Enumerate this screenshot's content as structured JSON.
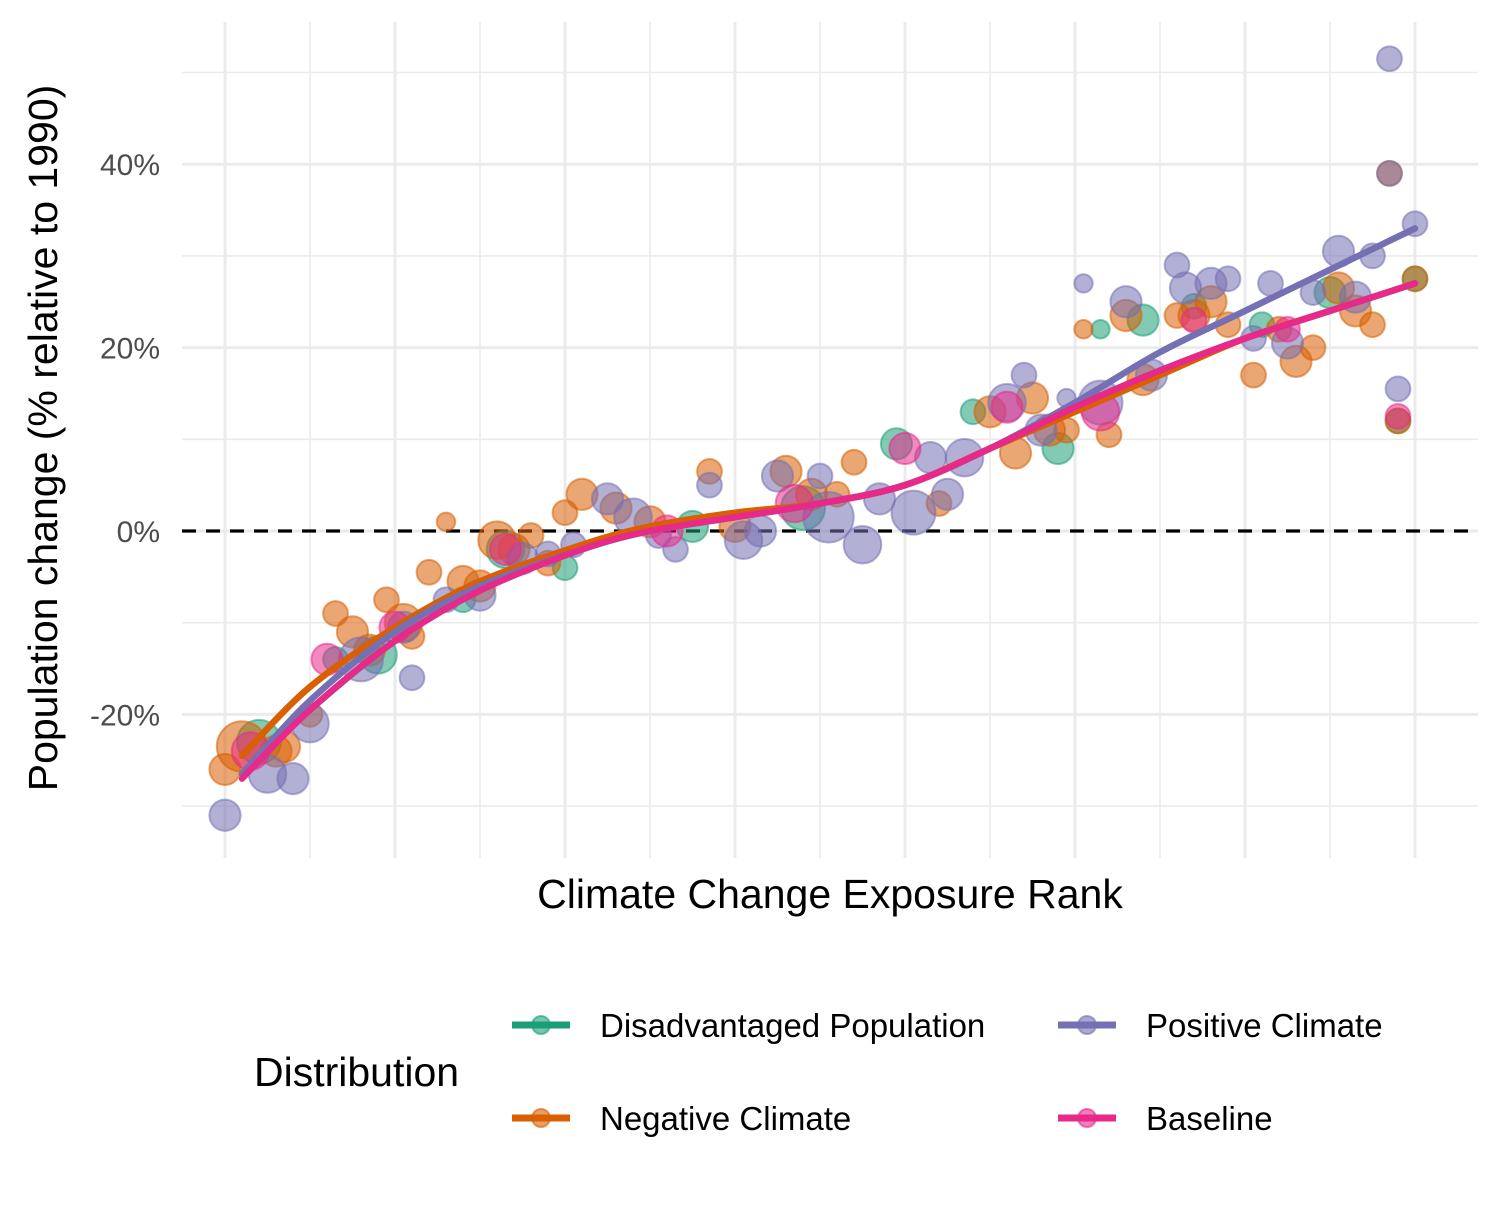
{
  "chart_data": {
    "type": "scatter",
    "title": "",
    "xlabel": "Climate Change Exposure Rank",
    "ylabel": "Population change (% relative to 1990)",
    "xlim": [
      -2,
      150
    ],
    "ylim": [
      -35,
      53
    ],
    "y_ticks": [
      -20,
      0,
      20,
      40
    ],
    "y_tick_labels": [
      "-20%",
      "0%",
      "20%",
      "40%"
    ],
    "grid": true,
    "reference_line": {
      "y": 0,
      "style": "dashed",
      "color": "#000000"
    },
    "legend": {
      "title": "Distribution",
      "position": "bottom",
      "entries": [
        {
          "label": "Disadvantaged Population",
          "color": "#1B9E77"
        },
        {
          "label": "Positive Climate",
          "color": "#7570B3"
        },
        {
          "label": "Negative Climate",
          "color": "#D95F02"
        },
        {
          "label": "Baseline",
          "color": "#E7298A"
        }
      ]
    },
    "series": [
      {
        "name": "Disadvantaged Population",
        "color": "#1B9E77",
        "trend": [
          [
            2,
            -26.5
          ],
          [
            10,
            -19.5
          ],
          [
            20,
            -12
          ],
          [
            30,
            -6.5
          ],
          [
            42,
            -2
          ],
          [
            50,
            0
          ],
          [
            60,
            1.5
          ],
          [
            70,
            3
          ],
          [
            80,
            5
          ],
          [
            90,
            9
          ],
          [
            100,
            13.5
          ],
          [
            110,
            17.5
          ],
          [
            120,
            21
          ],
          [
            130,
            24
          ],
          [
            140,
            27
          ]
        ],
        "points": [
          {
            "x": 4,
            "y": -23,
            "s": 5
          },
          {
            "x": 13,
            "y": -14,
            "s": 2
          },
          {
            "x": 18,
            "y": -13.5,
            "s": 4
          },
          {
            "x": 28,
            "y": -7.5,
            "s": 2
          },
          {
            "x": 33,
            "y": -2,
            "s": 4
          },
          {
            "x": 40,
            "y": -4,
            "s": 2
          },
          {
            "x": 55,
            "y": 0.5,
            "s": 3
          },
          {
            "x": 68,
            "y": 2.5,
            "s": 5
          },
          {
            "x": 79,
            "y": 9.5,
            "s": 3
          },
          {
            "x": 88,
            "y": 13,
            "s": 2
          },
          {
            "x": 98,
            "y": 9,
            "s": 3
          },
          {
            "x": 103,
            "y": 22,
            "s": 1
          },
          {
            "x": 108,
            "y": 23,
            "s": 3
          },
          {
            "x": 114,
            "y": 24.5,
            "s": 2
          },
          {
            "x": 122,
            "y": 22.5,
            "s": 2
          },
          {
            "x": 130,
            "y": 26,
            "s": 3
          },
          {
            "x": 138,
            "y": 12,
            "s": 2
          },
          {
            "x": 140,
            "y": 27.5,
            "s": 2
          }
        ]
      },
      {
        "name": "Positive Climate",
        "color": "#7570B3",
        "trend": [
          [
            2,
            -26.5
          ],
          [
            10,
            -18.5
          ],
          [
            20,
            -11
          ],
          [
            30,
            -6
          ],
          [
            42,
            -2
          ],
          [
            50,
            0
          ],
          [
            60,
            1.5
          ],
          [
            70,
            3
          ],
          [
            80,
            5
          ],
          [
            90,
            9
          ],
          [
            100,
            14
          ],
          [
            110,
            19.5
          ],
          [
            120,
            24
          ],
          [
            130,
            28.5
          ],
          [
            140,
            33
          ]
        ],
        "points": [
          {
            "x": 0,
            "y": -31,
            "s": 3
          },
          {
            "x": 5,
            "y": -26.5,
            "s": 4
          },
          {
            "x": 8,
            "y": -27,
            "s": 3
          },
          {
            "x": 10,
            "y": -21,
            "s": 4
          },
          {
            "x": 16,
            "y": -14,
            "s": 5
          },
          {
            "x": 21,
            "y": -10.5,
            "s": 3
          },
          {
            "x": 22,
            "y": -16,
            "s": 2
          },
          {
            "x": 26,
            "y": -7.5,
            "s": 2
          },
          {
            "x": 30,
            "y": -7,
            "s": 3
          },
          {
            "x": 35,
            "y": -3,
            "s": 3
          },
          {
            "x": 38,
            "y": -2.5,
            "s": 2
          },
          {
            "x": 41,
            "y": -1.5,
            "s": 2
          },
          {
            "x": 45,
            "y": 3.5,
            "s": 3
          },
          {
            "x": 48,
            "y": 1.5,
            "s": 4
          },
          {
            "x": 51,
            "y": -0.5,
            "s": 2
          },
          {
            "x": 53,
            "y": -2,
            "s": 2
          },
          {
            "x": 57,
            "y": 5,
            "s": 2
          },
          {
            "x": 61,
            "y": -1,
            "s": 4
          },
          {
            "x": 63,
            "y": 0,
            "s": 3
          },
          {
            "x": 65,
            "y": 6,
            "s": 3
          },
          {
            "x": 70,
            "y": 6,
            "s": 2
          },
          {
            "x": 71,
            "y": 1.5,
            "s": 6
          },
          {
            "x": 75,
            "y": -1.5,
            "s": 4
          },
          {
            "x": 77,
            "y": 3.5,
            "s": 3
          },
          {
            "x": 81,
            "y": 2,
            "s": 5
          },
          {
            "x": 83,
            "y": 8,
            "s": 3
          },
          {
            "x": 85,
            "y": 4,
            "s": 3
          },
          {
            "x": 87,
            "y": 8,
            "s": 4
          },
          {
            "x": 92,
            "y": 14,
            "s": 4
          },
          {
            "x": 94,
            "y": 17,
            "s": 2
          },
          {
            "x": 96,
            "y": 11,
            "s": 3
          },
          {
            "x": 99,
            "y": 14.5,
            "s": 1
          },
          {
            "x": 101,
            "y": 27,
            "s": 1
          },
          {
            "x": 103,
            "y": 14,
            "s": 5
          },
          {
            "x": 106,
            "y": 25,
            "s": 3
          },
          {
            "x": 109,
            "y": 17,
            "s": 3
          },
          {
            "x": 112,
            "y": 29,
            "s": 2
          },
          {
            "x": 113,
            "y": 26.5,
            "s": 3
          },
          {
            "x": 116,
            "y": 27,
            "s": 3
          },
          {
            "x": 118,
            "y": 27.5,
            "s": 2
          },
          {
            "x": 121,
            "y": 21,
            "s": 2
          },
          {
            "x": 123,
            "y": 27,
            "s": 2
          },
          {
            "x": 125,
            "y": 20.5,
            "s": 3
          },
          {
            "x": 128,
            "y": 26,
            "s": 2
          },
          {
            "x": 131,
            "y": 30.5,
            "s": 3
          },
          {
            "x": 133,
            "y": 25.5,
            "s": 3
          },
          {
            "x": 135,
            "y": 30,
            "s": 2
          },
          {
            "x": 137,
            "y": 51.5,
            "s": 2
          },
          {
            "x": 137,
            "y": 39,
            "s": 2
          },
          {
            "x": 138,
            "y": 15.5,
            "s": 2
          },
          {
            "x": 140,
            "y": 33.5,
            "s": 2
          }
        ]
      },
      {
        "name": "Negative Climate",
        "color": "#D95F02",
        "trend": [
          [
            2,
            -24.5
          ],
          [
            10,
            -17
          ],
          [
            20,
            -10.5
          ],
          [
            30,
            -5.5
          ],
          [
            42,
            -1.5
          ],
          [
            50,
            0.5
          ],
          [
            60,
            2
          ],
          [
            70,
            3
          ],
          [
            80,
            5
          ],
          [
            90,
            9
          ],
          [
            100,
            13
          ],
          [
            110,
            17
          ],
          [
            120,
            21
          ],
          [
            130,
            24
          ],
          [
            140,
            27
          ]
        ],
        "points": [
          {
            "x": 0,
            "y": -26,
            "s": 3
          },
          {
            "x": 2,
            "y": -23.5,
            "s": 6
          },
          {
            "x": 6,
            "y": -24,
            "s": 3
          },
          {
            "x": 7,
            "y": -23.5,
            "s": 3
          },
          {
            "x": 10,
            "y": -20,
            "s": 2
          },
          {
            "x": 13,
            "y": -9,
            "s": 2
          },
          {
            "x": 15,
            "y": -11,
            "s": 3
          },
          {
            "x": 17,
            "y": -13,
            "s": 3
          },
          {
            "x": 19,
            "y": -7.5,
            "s": 2
          },
          {
            "x": 21,
            "y": -10,
            "s": 4
          },
          {
            "x": 22,
            "y": -11.5,
            "s": 2
          },
          {
            "x": 24,
            "y": -4.5,
            "s": 2
          },
          {
            "x": 26,
            "y": 1,
            "s": 1
          },
          {
            "x": 28,
            "y": -5.5,
            "s": 3
          },
          {
            "x": 30,
            "y": -6,
            "s": 3
          },
          {
            "x": 32,
            "y": -1,
            "s": 4
          },
          {
            "x": 34,
            "y": -2,
            "s": 3
          },
          {
            "x": 36,
            "y": -0.5,
            "s": 2
          },
          {
            "x": 38,
            "y": -3.5,
            "s": 2
          },
          {
            "x": 40,
            "y": 2,
            "s": 2
          },
          {
            "x": 42,
            "y": 4,
            "s": 3
          },
          {
            "x": 46,
            "y": 2.5,
            "s": 3
          },
          {
            "x": 50,
            "y": 1,
            "s": 3
          },
          {
            "x": 57,
            "y": 6.5,
            "s": 2
          },
          {
            "x": 60,
            "y": 0.5,
            "s": 3
          },
          {
            "x": 66,
            "y": 6.5,
            "s": 3
          },
          {
            "x": 69,
            "y": 4,
            "s": 3
          },
          {
            "x": 72,
            "y": 4,
            "s": 2
          },
          {
            "x": 74,
            "y": 7.5,
            "s": 2
          },
          {
            "x": 84,
            "y": 3,
            "s": 2
          },
          {
            "x": 90,
            "y": 13,
            "s": 3
          },
          {
            "x": 93,
            "y": 8.5,
            "s": 3
          },
          {
            "x": 95,
            "y": 14.5,
            "s": 3
          },
          {
            "x": 97,
            "y": 11,
            "s": 3
          },
          {
            "x": 99,
            "y": 11,
            "s": 2
          },
          {
            "x": 101,
            "y": 22,
            "s": 1
          },
          {
            "x": 104,
            "y": 10.5,
            "s": 2
          },
          {
            "x": 106,
            "y": 23.5,
            "s": 3
          },
          {
            "x": 108,
            "y": 16.5,
            "s": 3
          },
          {
            "x": 112,
            "y": 23.5,
            "s": 2
          },
          {
            "x": 114,
            "y": 23.5,
            "s": 3
          },
          {
            "x": 116,
            "y": 25,
            "s": 3
          },
          {
            "x": 118,
            "y": 22.5,
            "s": 2
          },
          {
            "x": 121,
            "y": 17,
            "s": 2
          },
          {
            "x": 124,
            "y": 22,
            "s": 2
          },
          {
            "x": 126,
            "y": 18.5,
            "s": 3
          },
          {
            "x": 128,
            "y": 20,
            "s": 2
          },
          {
            "x": 131,
            "y": 26.5,
            "s": 3
          },
          {
            "x": 133,
            "y": 24,
            "s": 3
          },
          {
            "x": 135,
            "y": 22.5,
            "s": 2
          },
          {
            "x": 137,
            "y": 39,
            "s": 2
          },
          {
            "x": 138,
            "y": 12,
            "s": 2
          },
          {
            "x": 140,
            "y": 27.5,
            "s": 2
          }
        ]
      },
      {
        "name": "Baseline",
        "color": "#E7298A",
        "trend": [
          [
            2,
            -27
          ],
          [
            10,
            -19.5
          ],
          [
            20,
            -12
          ],
          [
            30,
            -6.5
          ],
          [
            42,
            -2
          ],
          [
            50,
            0
          ],
          [
            60,
            1.5
          ],
          [
            70,
            3
          ],
          [
            80,
            5
          ],
          [
            90,
            9
          ],
          [
            100,
            13.5
          ],
          [
            110,
            17.5
          ],
          [
            120,
            21
          ],
          [
            130,
            24
          ],
          [
            140,
            27
          ]
        ],
        "points": [
          {
            "x": 3,
            "y": -24,
            "s": 4
          },
          {
            "x": 12,
            "y": -14,
            "s": 3
          },
          {
            "x": 20,
            "y": -10.5,
            "s": 3
          },
          {
            "x": 33,
            "y": -2,
            "s": 3
          },
          {
            "x": 52,
            "y": 0,
            "s": 3
          },
          {
            "x": 67,
            "y": 3,
            "s": 4
          },
          {
            "x": 80,
            "y": 9,
            "s": 3
          },
          {
            "x": 92,
            "y": 13.5,
            "s": 3
          },
          {
            "x": 103,
            "y": 13,
            "s": 4
          },
          {
            "x": 114,
            "y": 23,
            "s": 2
          },
          {
            "x": 125,
            "y": 22,
            "s": 2
          },
          {
            "x": 138,
            "y": 12.5,
            "s": 2
          }
        ]
      }
    ]
  }
}
